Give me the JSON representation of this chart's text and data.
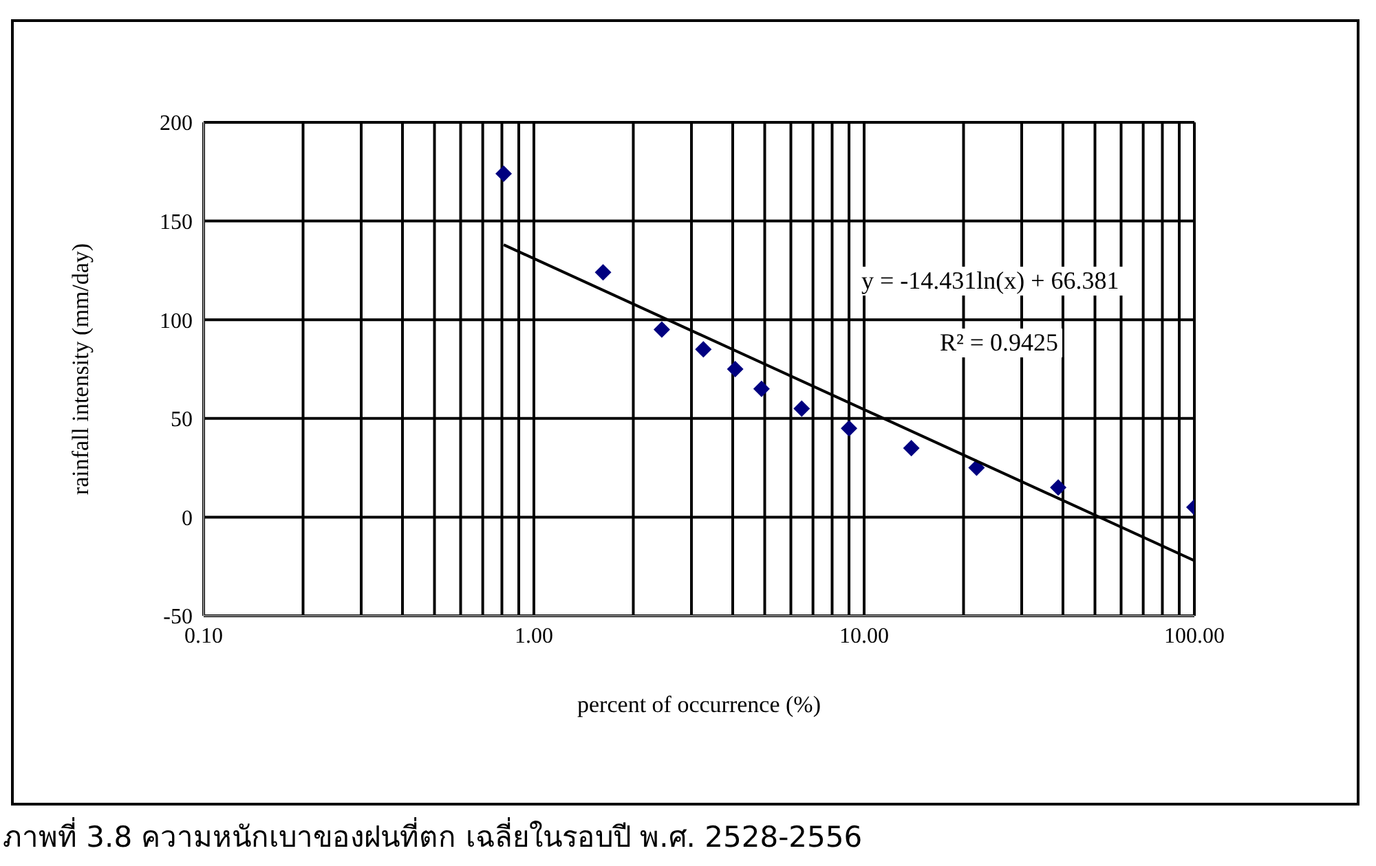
{
  "chart_data": {
    "type": "scatter",
    "xlabel": "percent of occurrence (%)",
    "ylabel": "rainfall intensity (mm/day)",
    "log": "x",
    "xlim": [
      0.1,
      100
    ],
    "ylim": [
      -50,
      200
    ],
    "yticks": [
      -50,
      0,
      50,
      100,
      150,
      200
    ],
    "xticks": [
      {
        "value": 0.1,
        "label": "0.10"
      },
      {
        "value": 0.2,
        "label": null
      },
      {
        "value": 0.3,
        "label": null
      },
      {
        "value": 0.4,
        "label": null
      },
      {
        "value": 0.5,
        "label": null
      },
      {
        "value": 0.6,
        "label": null
      },
      {
        "value": 0.7,
        "label": null
      },
      {
        "value": 0.8,
        "label": null
      },
      {
        "value": 0.9,
        "label": null
      },
      {
        "value": 1,
        "label": "1.00"
      },
      {
        "value": 2,
        "label": null
      },
      {
        "value": 3,
        "label": null
      },
      {
        "value": 4,
        "label": null
      },
      {
        "value": 5,
        "label": null
      },
      {
        "value": 6,
        "label": null
      },
      {
        "value": 7,
        "label": null
      },
      {
        "value": 8,
        "label": null
      },
      {
        "value": 9,
        "label": null
      },
      {
        "value": 10,
        "label": "10.00"
      },
      {
        "value": 20,
        "label": null
      },
      {
        "value": 30,
        "label": null
      },
      {
        "value": 40,
        "label": null
      },
      {
        "value": 50,
        "label": null
      },
      {
        "value": 60,
        "label": null
      },
      {
        "value": 70,
        "label": null
      },
      {
        "value": 80,
        "label": null
      },
      {
        "value": 90,
        "label": null
      },
      {
        "value": 100,
        "label": "100.00"
      }
    ],
    "grid": true,
    "legend": false,
    "marker": "diamond",
    "series": [
      {
        "color": "#000080",
        "x": [
          0.81,
          1.62,
          2.44,
          3.26,
          4.07,
          4.89,
          6.47,
          9.0,
          13.9,
          21.9,
          38.7,
          100
        ],
        "values": [
          174,
          124,
          95,
          85,
          75,
          65,
          55,
          45,
          35,
          25,
          15,
          5
        ]
      },
      {
        "type": "line",
        "color": "#000000",
        "marker": "none",
        "x": [
          0.81,
          100
        ],
        "values": [
          138,
          -22
        ]
      }
    ],
    "annotations": [
      "y = -14.431ln(x) + 66.381",
      "R² = 0.9425",
      "ภาพที่ 3.8 ความหนักเบาของฝนที่ตก เฉลี่ยในรอบปี พ.ศ. 2528-2556"
    ]
  }
}
